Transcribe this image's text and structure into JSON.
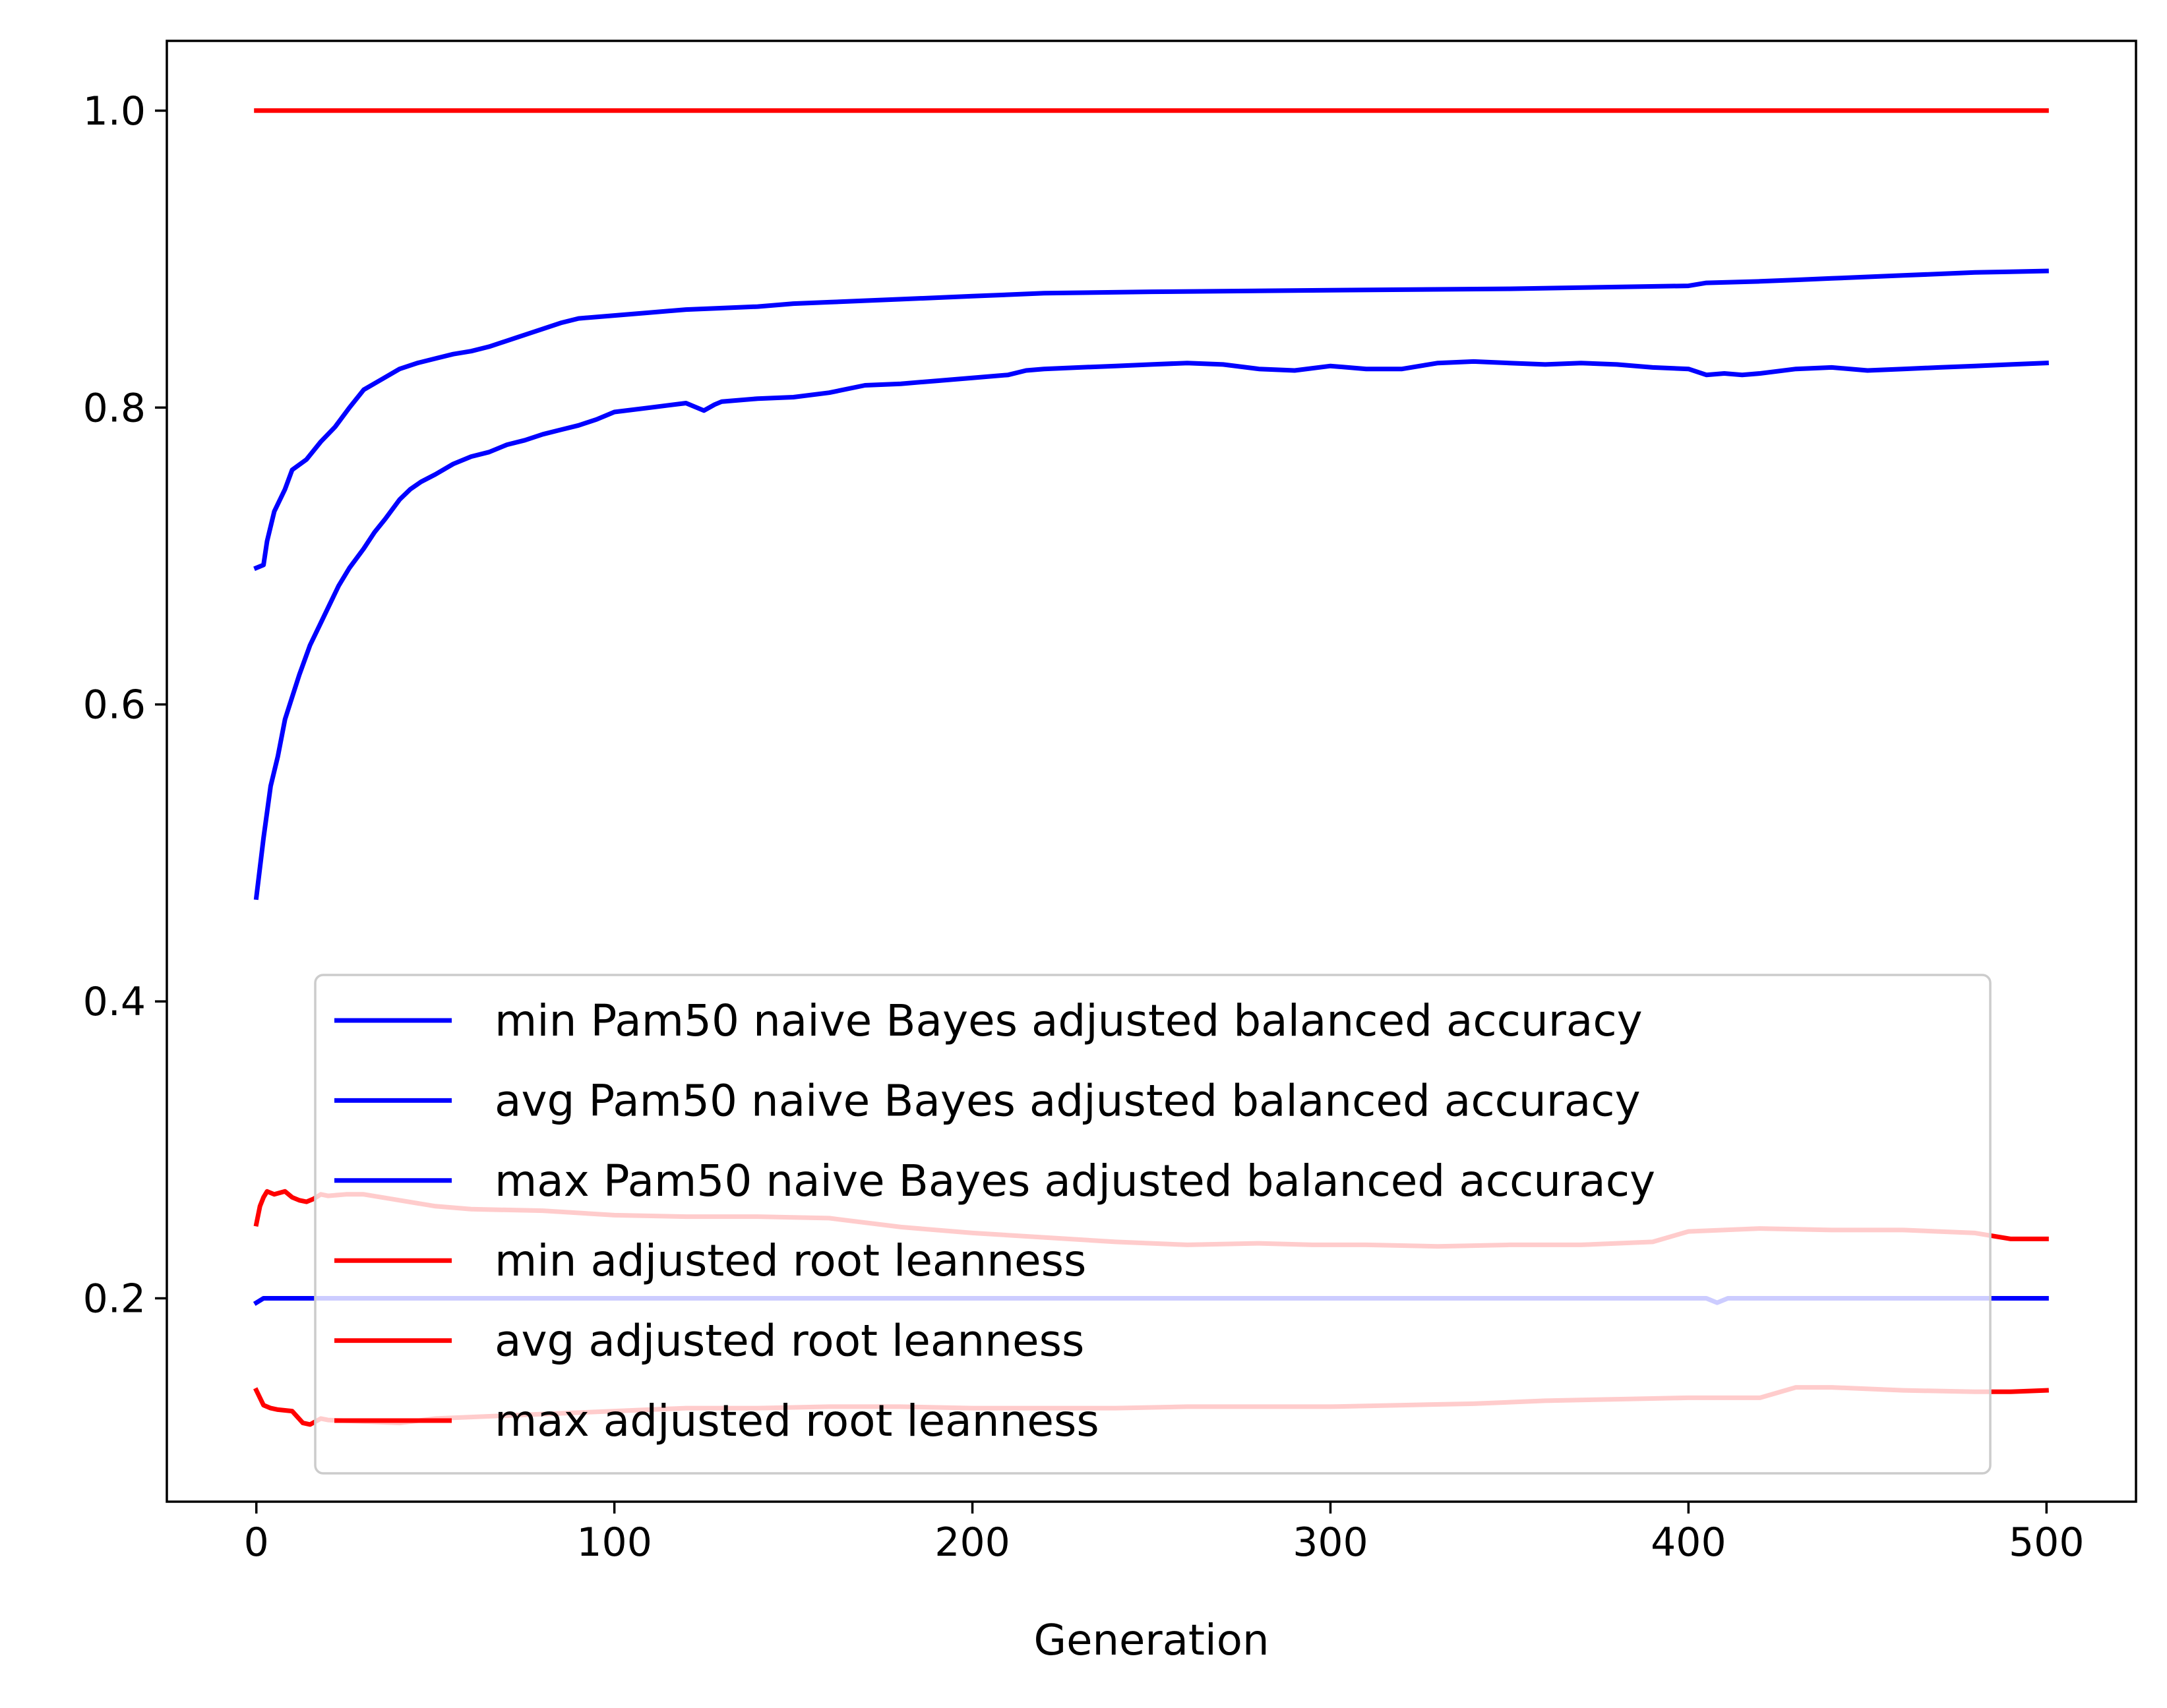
{
  "chart_data": {
    "type": "line",
    "title": "",
    "xlabel": "Generation",
    "ylabel": "",
    "xlim": [
      -25,
      525
    ],
    "ylim": [
      0.063,
      1.047
    ],
    "xticks": [
      0,
      100,
      200,
      300,
      400,
      500
    ],
    "xtick_labels": [
      "0",
      "100",
      "200",
      "300",
      "400",
      "500"
    ],
    "yticks": [
      0.2,
      0.4,
      0.6,
      0.8,
      1.0
    ],
    "ytick_labels": [
      "0.2",
      "0.4",
      "0.6",
      "0.8",
      "1.0"
    ],
    "grid": false,
    "legend_position": "lower center",
    "series": [
      {
        "name": "min Pam50 naive Bayes adjusted balanced accuracy",
        "color": "#0000ff",
        "x": [
          0,
          2,
          5,
          10,
          20,
          50,
          100,
          200,
          300,
          405,
          408,
          411,
          420,
          500
        ],
        "y": [
          0.197,
          0.2,
          0.2,
          0.2,
          0.2,
          0.2,
          0.2,
          0.2,
          0.2,
          0.2,
          0.197,
          0.2,
          0.2,
          0.2
        ]
      },
      {
        "name": "avg Pam50 naive Bayes adjusted balanced accuracy",
        "color": "#0000ff",
        "x": [
          0,
          2,
          4,
          6,
          8,
          10,
          12,
          15,
          18,
          20,
          23,
          26,
          30,
          33,
          36,
          40,
          43,
          46,
          50,
          55,
          60,
          65,
          70,
          75,
          80,
          85,
          90,
          95,
          100,
          110,
          120,
          125,
          128,
          130,
          140,
          150,
          160,
          170,
          180,
          190,
          200,
          210,
          215,
          220,
          230,
          240,
          250,
          260,
          270,
          280,
          290,
          300,
          310,
          320,
          330,
          340,
          350,
          360,
          370,
          380,
          390,
          400,
          405,
          410,
          415,
          420,
          430,
          440,
          450,
          460,
          470,
          480,
          490,
          500
        ],
        "y": [
          0.47,
          0.51,
          0.545,
          0.565,
          0.59,
          0.605,
          0.62,
          0.64,
          0.655,
          0.665,
          0.68,
          0.692,
          0.705,
          0.716,
          0.725,
          0.738,
          0.745,
          0.75,
          0.755,
          0.762,
          0.767,
          0.77,
          0.775,
          0.778,
          0.782,
          0.785,
          0.788,
          0.792,
          0.797,
          0.8,
          0.803,
          0.798,
          0.802,
          0.804,
          0.806,
          0.807,
          0.81,
          0.815,
          0.816,
          0.818,
          0.82,
          0.822,
          0.825,
          0.826,
          0.827,
          0.828,
          0.829,
          0.83,
          0.829,
          0.826,
          0.825,
          0.828,
          0.826,
          0.826,
          0.83,
          0.831,
          0.83,
          0.829,
          0.83,
          0.829,
          0.827,
          0.826,
          0.822,
          0.823,
          0.822,
          0.823,
          0.826,
          0.827,
          0.825,
          0.826,
          0.827,
          0.828,
          0.829,
          0.83
        ]
      },
      {
        "name": "max Pam50 naive Bayes adjusted balanced accuracy",
        "color": "#0000ff",
        "x": [
          0,
          2,
          3,
          5,
          8,
          10,
          14,
          18,
          22,
          26,
          30,
          35,
          40,
          45,
          50,
          55,
          60,
          65,
          70,
          75,
          80,
          85,
          90,
          100,
          110,
          120,
          130,
          140,
          150,
          160,
          170,
          180,
          200,
          220,
          250,
          300,
          350,
          400,
          405,
          420,
          430,
          440,
          460,
          480,
          500
        ],
        "y": [
          0.692,
          0.694,
          0.71,
          0.73,
          0.745,
          0.758,
          0.765,
          0.777,
          0.787,
          0.8,
          0.812,
          0.819,
          0.826,
          0.83,
          0.833,
          0.836,
          0.838,
          0.841,
          0.845,
          0.849,
          0.853,
          0.857,
          0.86,
          0.862,
          0.864,
          0.866,
          0.867,
          0.868,
          0.87,
          0.871,
          0.872,
          0.873,
          0.875,
          0.877,
          0.878,
          0.879,
          0.88,
          0.882,
          0.884,
          0.885,
          0.886,
          0.887,
          0.889,
          0.891,
          0.892
        ]
      },
      {
        "name": "min adjusted root leanness",
        "color": "#ff0000",
        "x": [
          0,
          2,
          4,
          6,
          10,
          13,
          15,
          18,
          20,
          30,
          40,
          50,
          60,
          80,
          100,
          120,
          140,
          160,
          180,
          200,
          220,
          240,
          260,
          270,
          280,
          290,
          300,
          320,
          340,
          360,
          380,
          400,
          420,
          430,
          440,
          460,
          480,
          490,
          500
        ],
        "y": [
          0.138,
          0.128,
          0.126,
          0.125,
          0.124,
          0.116,
          0.115,
          0.119,
          0.118,
          0.117,
          0.116,
          0.119,
          0.12,
          0.122,
          0.124,
          0.126,
          0.126,
          0.127,
          0.127,
          0.126,
          0.126,
          0.126,
          0.127,
          0.127,
          0.127,
          0.127,
          0.127,
          0.128,
          0.129,
          0.131,
          0.132,
          0.133,
          0.133,
          0.14,
          0.14,
          0.138,
          0.137,
          0.137,
          0.138
        ]
      },
      {
        "name": "avg adjusted root leanness",
        "color": "#ff0000",
        "x": [
          0,
          1,
          2,
          3,
          5,
          8,
          10,
          12,
          14,
          16,
          18,
          20,
          25,
          30,
          35,
          40,
          50,
          60,
          80,
          100,
          120,
          140,
          160,
          180,
          200,
          220,
          240,
          260,
          280,
          295,
          310,
          330,
          350,
          370,
          390,
          400,
          420,
          440,
          460,
          480,
          490,
          500
        ],
        "y": [
          0.25,
          0.262,
          0.268,
          0.272,
          0.27,
          0.272,
          0.268,
          0.266,
          0.265,
          0.267,
          0.27,
          0.269,
          0.27,
          0.27,
          0.268,
          0.266,
          0.262,
          0.26,
          0.259,
          0.256,
          0.255,
          0.255,
          0.254,
          0.248,
          0.244,
          0.241,
          0.238,
          0.236,
          0.237,
          0.236,
          0.236,
          0.235,
          0.236,
          0.236,
          0.238,
          0.245,
          0.247,
          0.246,
          0.246,
          0.244,
          0.24,
          0.24
        ]
      },
      {
        "name": "max adjusted root leanness",
        "color": "#ff0000",
        "x": [
          0,
          500
        ],
        "y": [
          1.0,
          1.0
        ]
      }
    ],
    "legend": {
      "labels": [
        "min Pam50 naive Bayes adjusted balanced accuracy",
        "avg Pam50 naive Bayes adjusted balanced accuracy",
        "max Pam50 naive Bayes adjusted balanced accuracy",
        "min adjusted root leanness",
        "avg adjusted root leanness",
        "max adjusted root leanness"
      ],
      "colors": [
        "#0000ff",
        "#0000ff",
        "#0000ff",
        "#ff0000",
        "#ff0000",
        "#ff0000"
      ]
    }
  }
}
